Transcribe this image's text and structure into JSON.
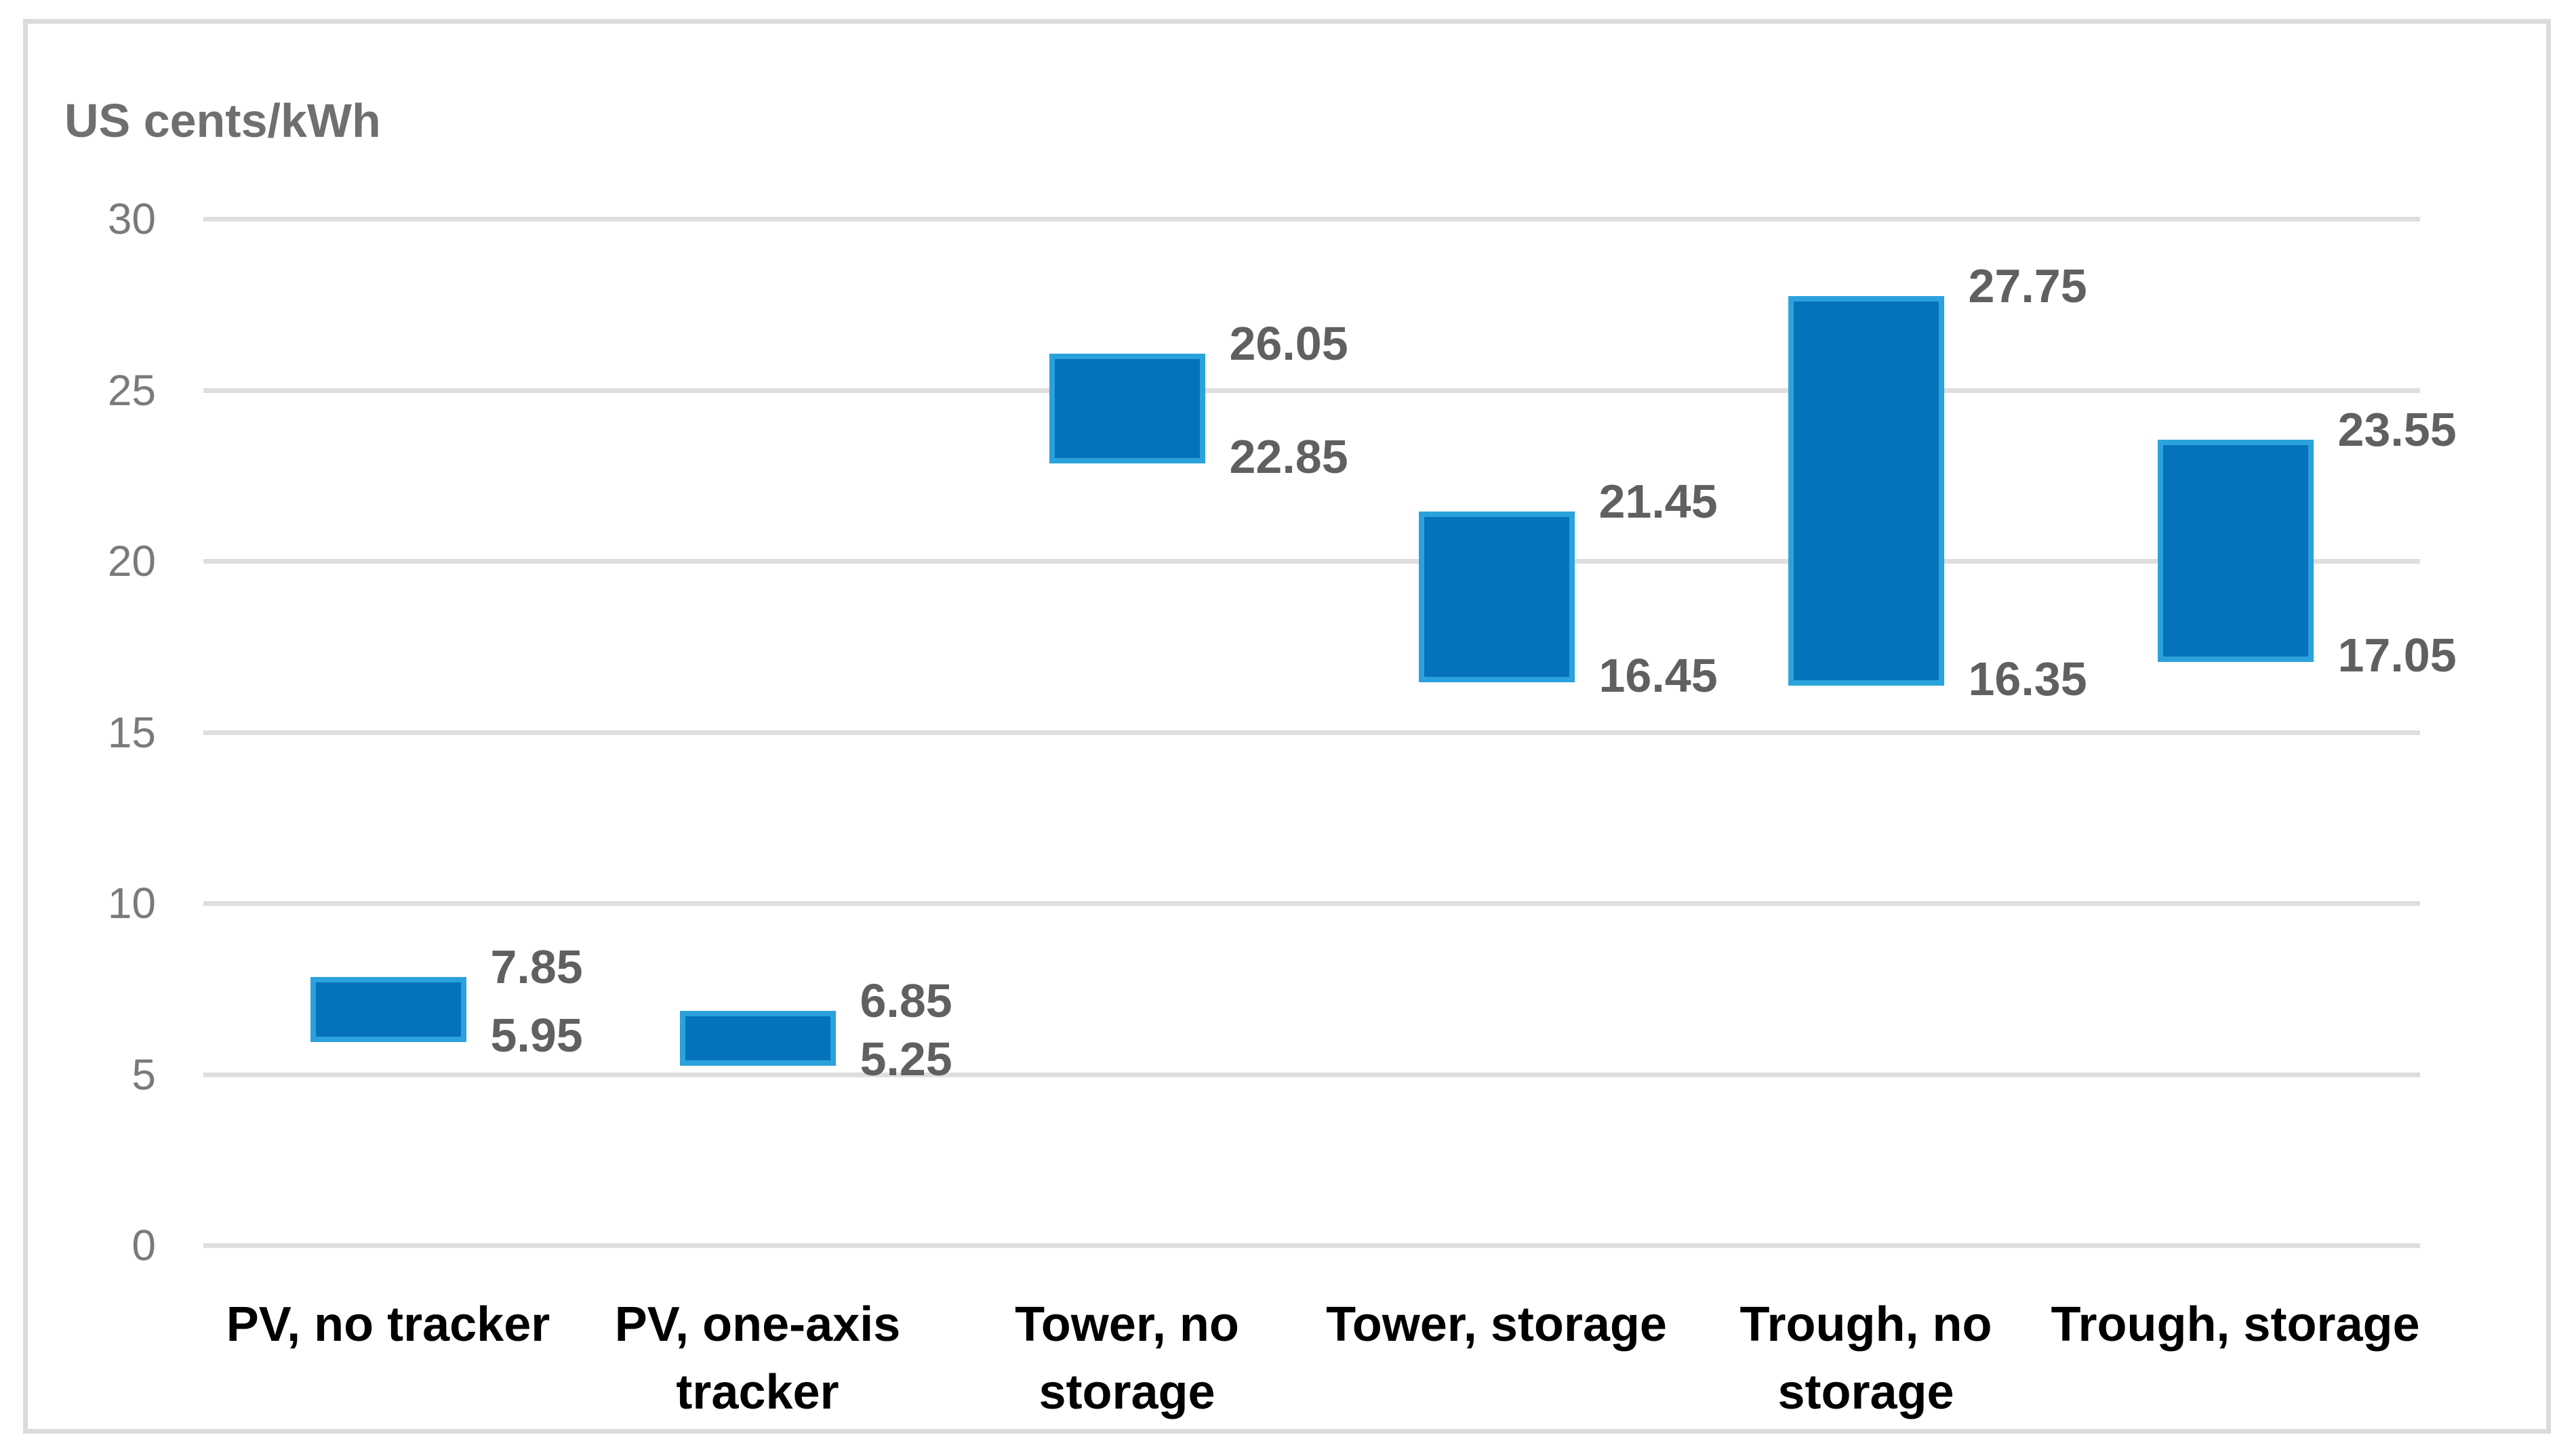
{
  "chart_data": {
    "type": "bar",
    "subtype": "floating-range-column",
    "axis_title": "US cents/kWh",
    "xlabel": "",
    "ylabel": "US cents/kWh",
    "categories": [
      "PV, no tracker",
      "PV, one-axis\ntracker",
      "Tower, no\nstorage",
      "Tower, storage",
      "Trough, no\nstorage",
      "Trough, storage"
    ],
    "series": [
      {
        "name": "min",
        "values": [
          5.95,
          5.25,
          22.85,
          16.45,
          16.35,
          17.05
        ]
      },
      {
        "name": "max",
        "values": [
          7.85,
          6.85,
          26.05,
          21.45,
          27.75,
          23.55
        ]
      }
    ],
    "data_labels": {
      "max": [
        "7.85",
        "6.85",
        "26.05",
        "21.45",
        "27.75",
        "23.55"
      ],
      "min": [
        "5.95",
        "5.25",
        "22.85",
        "16.45",
        "16.35",
        "17.05"
      ]
    },
    "ylim": [
      0,
      30
    ],
    "yticks": [
      0,
      5,
      10,
      15,
      20,
      25,
      30
    ],
    "ytick_labels": [
      "0",
      "5",
      "10",
      "15",
      "20",
      "25",
      "30"
    ],
    "grid": true,
    "legend": false,
    "colors": {
      "bar_fill": "#0473BB",
      "bar_border": "#2BA2DC",
      "gridline": "#DEDEDE",
      "chart_frame": "#DBDBDB",
      "tick_text": "#7A7A7A",
      "data_label_text": "#606060",
      "axis_title_text": "#6F6F6F",
      "category_text": "#000000"
    }
  }
}
